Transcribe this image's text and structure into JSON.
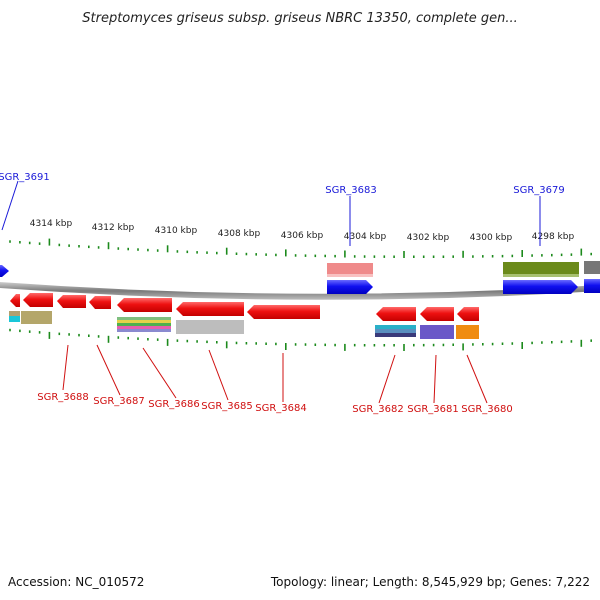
{
  "title": "Streptomyces griseus subsp. griseus NBRC 13350, complete gen...",
  "footer": {
    "accession": "Accession: NC_010572",
    "summary": "Topology: linear; Length: 8,545,929 bp; Genes: 7,222"
  },
  "ticks": [
    "4314 kbp",
    "4312 kbp",
    "4310 kbp",
    "4308 kbp",
    "4306 kbp",
    "4304 kbp",
    "4302 kbp",
    "4300 kbp",
    "4298 kbp"
  ],
  "colors": {
    "forward": "#1010f0",
    "reverse": "#ee1111",
    "backbone": "#8a8a8a",
    "tick": "#1c8a1c",
    "label_top": "#1a1ad8",
    "label_bottom": "#d01010"
  },
  "genes_forward": [
    {
      "label": "SGR_3691"
    },
    {
      "label": "SGR_3683"
    },
    {
      "label": "SGR_3679"
    }
  ],
  "genes_reverse": [
    {
      "label": "SGR_3688"
    },
    {
      "label": "SGR_3687"
    },
    {
      "label": "SGR_3686"
    },
    {
      "label": "SGR_3685"
    },
    {
      "label": "SGR_3684"
    },
    {
      "label": "SGR_3682"
    },
    {
      "label": "SGR_3681"
    },
    {
      "label": "SGR_3680"
    }
  ]
}
